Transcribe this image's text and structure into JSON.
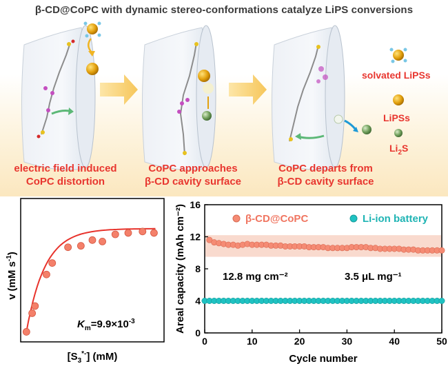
{
  "title": "β-CD@CoPC with dynamic stereo-conformations catalyze LiPS conversions",
  "steps": [
    {
      "line1": "electric field induced",
      "line2": "CoPC distortion"
    },
    {
      "line1": "CoPC approaches",
      "line2": "β-CD cavity surface"
    },
    {
      "line1": "CoPC departs from",
      "line2": "β-CD cavity surface"
    }
  ],
  "species_legend": {
    "solvated": "solvated LiPSs",
    "lipss": "LiPSs",
    "li2s_main": "Li",
    "li2s_sub": "2",
    "li2s_tail": "S"
  },
  "colors": {
    "caption_red": "#e8362f",
    "kinetic_red": "#e8322b",
    "coral": "#f58b74",
    "teal": "#1fc2c2",
    "gold": "#e3a10e",
    "green": "#6f9e5a"
  },
  "left_chart": {
    "ylabel_main": "v",
    "ylabel_unit": "(mM s",
    "ylabel_sup": "-1",
    "ylabel_close": ")",
    "xlabel_main": "[S",
    "xlabel_sub": "3",
    "xlabel_sup": "*-",
    "xlabel_tail": "] (mM)",
    "km_italic": "K",
    "km_sub": "m",
    "km_value": "=9.9×10",
    "km_exp": "-3"
  },
  "chart_data": {
    "type": "scatter",
    "ylabel": "Areal capacity (mAh cm⁻²)",
    "xlabel": "Cycle number",
    "xlim": [
      0,
      50
    ],
    "ylim": [
      0,
      16
    ],
    "xticks": [
      0,
      10,
      20,
      30,
      40,
      50
    ],
    "yticks": [
      0,
      4,
      8,
      12,
      16
    ],
    "annotations": [
      "12.8 mg cm⁻²",
      "3.5 μL mg⁻¹"
    ],
    "band": [
      9.5,
      12.2
    ],
    "series": [
      {
        "name": "β-CD@CoPC",
        "color": "#f58b74",
        "values": [
          11.6,
          11.3,
          11.2,
          11.1,
          11.0,
          11.0,
          10.9,
          11.0,
          11.1,
          11.0,
          11.0,
          11.0,
          11.0,
          10.9,
          10.9,
          10.9,
          10.8,
          10.8,
          10.8,
          10.8,
          10.8,
          10.7,
          10.7,
          10.7,
          10.7,
          10.6,
          10.6,
          10.6,
          10.6,
          10.6,
          10.7,
          10.7,
          10.7,
          10.7,
          10.6,
          10.6,
          10.5,
          10.5,
          10.5,
          10.5,
          10.5,
          10.4,
          10.4,
          10.4,
          10.3,
          10.3,
          10.3,
          10.3,
          10.3,
          10.3
        ]
      },
      {
        "name": "Li-ion battery",
        "color": "#1fc2c2",
        "values": [
          4,
          4,
          4,
          4,
          4,
          4,
          4,
          4,
          4,
          4,
          4,
          4,
          4,
          4,
          4,
          4,
          4,
          4,
          4,
          4,
          4,
          4,
          4,
          4,
          4,
          4,
          4,
          4,
          4,
          4,
          4,
          4,
          4,
          4,
          4,
          4,
          4,
          4,
          4,
          4,
          4,
          4,
          4,
          4,
          4,
          4,
          4,
          4,
          4,
          4,
          4
        ]
      }
    ]
  }
}
